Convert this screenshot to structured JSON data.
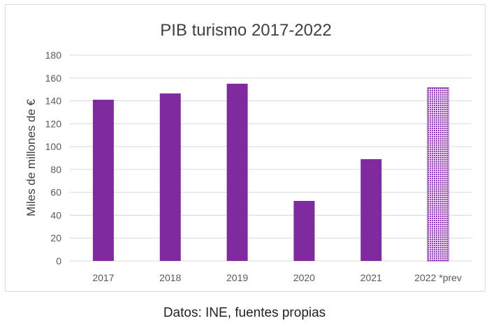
{
  "chart_data": {
    "type": "bar",
    "title": "PIB turismo 2017-2022",
    "xlabel": "",
    "ylabel": "Miles de millones de €",
    "categories": [
      "2017",
      "2018",
      "2019",
      "2020",
      "2021",
      "2022 *prev"
    ],
    "values": [
      141,
      146.5,
      155,
      52.5,
      89,
      151.5
    ],
    "forecast": [
      false,
      false,
      false,
      false,
      false,
      true
    ],
    "ylim": [
      0,
      180
    ],
    "yticks": [
      0,
      20,
      40,
      60,
      80,
      100,
      120,
      140,
      160,
      180
    ],
    "grid": true,
    "legend": "none",
    "colors": {
      "bar": "#7F2A9F",
      "forecast_pattern": "#8E3BB0",
      "grid": "#d9d9d9",
      "text": "#595959"
    }
  },
  "caption": "Datos: INE, fuentes propias"
}
